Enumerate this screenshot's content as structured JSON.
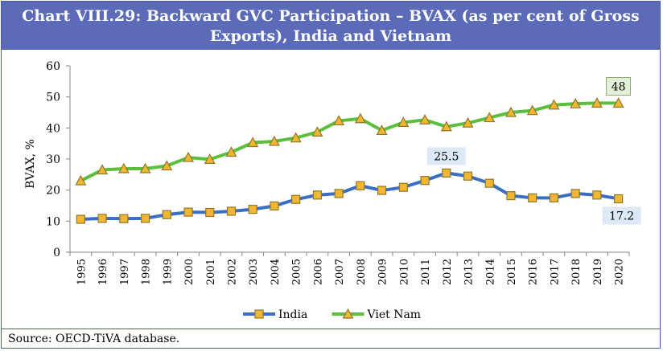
{
  "header": {
    "title_line1": "Chart VIII.29: Backward GVC Participation – BVAX (as per cent of Gross",
    "title_line2": "Exports), India and Vietnam"
  },
  "footer": {
    "source": "Source: OECD-TiVA database."
  },
  "colors": {
    "header_bg": "#5b6bb8",
    "india_line": "#3a6fc4",
    "india_marker": "#f2b632",
    "vietnam_line": "#5cbf3c",
    "vietnam_marker": "#f2b632",
    "label_india_bg": "#dde9f6",
    "label_vietnam_bg": "#e2f0d9"
  },
  "chart_data": {
    "type": "line",
    "title": "Chart VIII.29: Backward GVC Participation – BVAX (as per cent of Gross Exports), India and Vietnam",
    "xlabel": "",
    "ylabel": "BVAX, %",
    "ylim": [
      0,
      60
    ],
    "yticks": [
      0,
      10,
      20,
      30,
      40,
      50,
      60
    ],
    "categories": [
      "1995",
      "1996",
      "1997",
      "1998",
      "1999",
      "2000",
      "2001",
      "2002",
      "2003",
      "2004",
      "2005",
      "2006",
      "2007",
      "2008",
      "2009",
      "2010",
      "2011",
      "2012",
      "2013",
      "2014",
      "2015",
      "2016",
      "2017",
      "2018",
      "2019",
      "2020"
    ],
    "series": [
      {
        "name": "India",
        "values": [
          10.6,
          10.9,
          10.8,
          10.9,
          12.1,
          12.9,
          12.8,
          13.2,
          13.8,
          14.9,
          17.0,
          18.4,
          18.9,
          21.4,
          19.9,
          20.9,
          23.1,
          25.5,
          24.5,
          22.2,
          18.2,
          17.5,
          17.5,
          18.9,
          18.4,
          17.2
        ]
      },
      {
        "name": "Viet Nam",
        "values": [
          23.0,
          26.5,
          26.9,
          26.9,
          27.8,
          30.5,
          29.9,
          32.2,
          35.3,
          35.7,
          36.8,
          38.7,
          42.3,
          43.0,
          39.2,
          41.8,
          42.6,
          40.4,
          41.6,
          43.3,
          45.0,
          45.6,
          47.4,
          47.8,
          48.0,
          48.0
        ]
      }
    ],
    "annotations": [
      {
        "series": "India",
        "category": "2012",
        "text": "25.5"
      },
      {
        "series": "India",
        "category": "2020",
        "text": "17.2"
      },
      {
        "series": "Viet Nam",
        "category": "2020",
        "text": "48"
      }
    ],
    "legend": {
      "position": "bottom",
      "entries": [
        "India",
        "Viet Nam"
      ]
    },
    "grid": false
  }
}
